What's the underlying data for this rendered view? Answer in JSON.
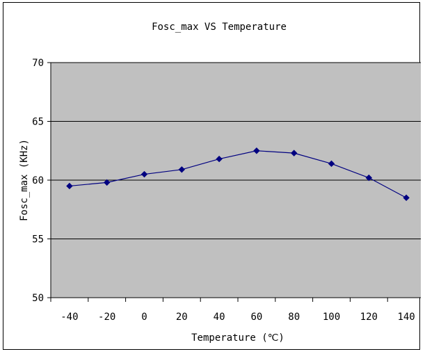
{
  "chart_data": {
    "type": "line",
    "title": "Fosc_max VS Temperature",
    "xlabel": "Temperature (℃)",
    "ylabel": "Fosc_max (KHz)",
    "categories": [
      "-40",
      "-20",
      "0",
      "20",
      "40",
      "60",
      "80",
      "100",
      "120",
      "140"
    ],
    "yticks": [
      "50",
      "55",
      "60",
      "65",
      "70"
    ],
    "ylim": [
      50,
      70
    ],
    "grid": true,
    "series": [
      {
        "values": [
          59.5,
          59.8,
          60.5,
          60.9,
          61.8,
          62.5,
          62.3,
          61.4,
          60.2,
          58.5
        ]
      }
    ],
    "colors": {
      "plot_bg": "#c0c0c0",
      "line": "#000080",
      "marker": "#000080",
      "grid": "#000000"
    }
  }
}
